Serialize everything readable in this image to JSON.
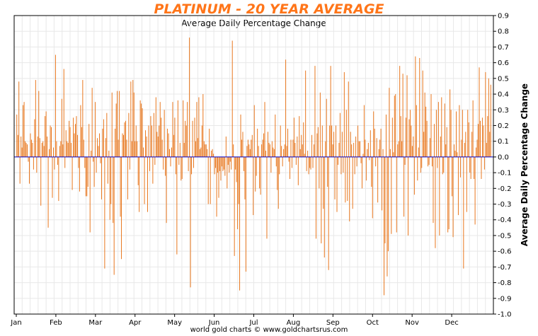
{
  "chart_data": {
    "type": "bar",
    "title": "PLATINUM - 20 YEAR AVERAGE",
    "subtitle": "Average Daily Percentage Change",
    "ylabel": "Average Daily Percentage Change",
    "ylim": [
      -1.0,
      0.9
    ],
    "yticks": [
      "0.9",
      "0.8",
      "0.7",
      "0.6",
      "0.5",
      "0.4",
      "0.3",
      "0.2",
      "0.1",
      "0.0",
      "-0.1",
      "-0.2",
      "-0.3",
      "-0.4",
      "-0.5",
      "-0.6",
      "-0.7",
      "-0.8",
      "-0.9",
      "-1.0"
    ],
    "months": [
      "Jan",
      "Feb",
      "Mar",
      "Apr",
      "May",
      "Jun",
      "Jul",
      "Aug",
      "Sep",
      "Oct",
      "Nov",
      "Dec"
    ],
    "grid": true,
    "bar_color": "#e8771e",
    "zero_line_color": "#0000cc",
    "values": [
      0.27,
      0.14,
      0.48,
      -0.17,
      0.13,
      0.06,
      0.33,
      0.35,
      0.1,
      0.09,
      0.08,
      -0.03,
      -0.17,
      0.15,
      0.11,
      0.09,
      -0.08,
      0.24,
      0.49,
      -0.1,
      0.13,
      0.42,
      0.12,
      -0.31,
      0.09,
      0.1,
      0.07,
      0.26,
      0.29,
      0.13,
      -0.45,
      0.05,
      0.2,
      0.19,
      -0.26,
      0.06,
      -0.08,
      0.65,
      0.1,
      -0.05,
      -0.28,
      0.07,
      0.1,
      0.37,
      0.08,
      0.56,
      -0.07,
      0.17,
      0.1,
      0.09,
      0.23,
      0.19,
      0.09,
      -0.21,
      0.25,
      0.15,
      0.21,
      0.26,
      0.14,
      -0.07,
      -0.22,
      0.33,
      0.19,
      0.49,
      0.11,
      -0.07,
      -0.25,
      -0.25,
      -0.19,
      0.21,
      -0.48,
      0.04,
      0.44,
      -0.03,
      -0.19,
      0.35,
      -0.1,
      0.12,
      0.07,
      0.15,
      -0.04,
      -0.27,
      0.18,
      0.24,
      -0.71,
      0.12,
      0.28,
      -0.17,
      0.04,
      -0.4,
      -0.3,
      0.41,
      -0.42,
      -0.75,
      0.18,
      0.34,
      0.42,
      0.11,
      0.42,
      -0.38,
      -0.65,
      0.15,
      0.14,
      0.22,
      0.23,
      0.11,
      -0.27,
      0.28,
      -0.08,
      0.48,
      0.1,
      0.49,
      0.41,
      0.1,
      0.2,
      0.1,
      -0.18,
      -0.35,
      0.36,
      0.34,
      0.31,
      0.06,
      -0.3,
      0.17,
      0.13,
      -0.35,
      0.2,
      -0.09,
      0.26,
      0.2,
      -0.17,
      0.28,
      -0.05,
      0.38,
      0.16,
      0.13,
      0.2,
      0.35,
      0.25,
      0.11,
      -0.08,
      0.3,
      -0.12,
      -0.42,
      0.18,
      0.15,
      0.05,
      -0.06,
      0.06,
      0.35,
      0.14,
      0.25,
      -0.11,
      -0.62,
      0.36,
      -0.05,
      0.09,
      -0.15,
      -0.14,
      0.36,
      0.09,
      0.23,
      0.2,
      0.35,
      -0.09,
      0.76,
      -0.83,
      -0.11,
      0.23,
      -0.07,
      0.25,
      0.1,
      0.35,
      0.12,
      0.38,
      0.05,
      0.06,
      0.2,
      0.4,
      0.1,
      0.08,
      0.08,
      0.05,
      -0.3,
      0.18,
      -0.3,
      0.04,
      0.05,
      0.02,
      -0.11,
      -0.07,
      -0.38,
      -0.1,
      -0.26,
      -0.09,
      -0.15,
      -0.06,
      -0.09,
      -0.08,
      -0.12,
      0.13,
      -0.2,
      -0.05,
      -0.1,
      -0.03,
      -0.08,
      0.74,
      0.08,
      -0.63,
      -0.08,
      -0.16,
      -0.46,
      -0.3,
      -0.85,
      0.27,
      0.11,
      0.16,
      -0.09,
      -0.27,
      -0.73,
      0.07,
      0.11,
      0.08,
      0.05,
      0.11,
      0.14,
      -0.37,
      0.33,
      -0.22,
      -0.12,
      0.18,
      0.07,
      -0.2,
      -0.24,
      0.08,
      0.11,
      0.15,
      0.35,
      0.04,
      -0.52,
      0.16,
      0.09,
      0.08,
      -0.1,
      0.1,
      0.06,
      0.05,
      0.27,
      -0.06,
      -0.21,
      -0.33,
      -0.11,
      0.2,
      0.07,
      -0.06,
      0.05,
      0.08,
      0.62,
      0.07,
      0.18,
      -0.03,
      -0.14,
      0.11,
      -0.07,
      0.11,
      0.25,
      0.09,
      -0.05,
      0.13,
      -0.18,
      0.26,
      0.05,
      0.14,
      0.08,
      0.22,
      0.02,
      0.55,
      -0.09,
      0.04,
      -0.11,
      -0.07,
      -0.08,
      0.14,
      -0.07,
      0.08,
      0.58,
      -0.52,
      0.15,
      0.19,
      -0.2,
      0.41,
      -0.55,
      0.2,
      -0.33,
      -0.64,
      0.1,
      0.37,
      -0.19,
      -0.72,
      0.2,
      0.58,
      0.2,
      0.08,
      0.16,
      -0.27,
      0.2,
      -0.35,
      -0.05,
      0.09,
      0.28,
      -0.11,
      0.16,
      -0.1,
      0.54,
      -0.29,
      0.3,
      -0.28,
      0.48,
      -0.41,
      0.16,
      0.08,
      -0.33,
      0.09,
      -0.11,
      0.13,
      -0.06,
      0.2,
      0.1,
      0.1,
      -0.04,
      -0.2,
      0.02,
      0.33,
      0.11,
      -0.15,
      0.05,
      0.09,
      -0.02,
      0.17,
      -0.19,
      -0.39,
      0.29,
      0.18,
      -0.06,
      0.12,
      -0.29,
      0.05,
      0.11,
      0.18,
      -0.34,
      0.05,
      -0.88,
      -0.55,
      0.27,
      -0.76,
      -0.6,
      0.44,
      0.05,
      -0.49,
      0.25,
      0.03,
      0.39,
      0.4,
      -0.48,
      0.08,
      0.1,
      0.58,
      0.26,
      0.1,
      0.53,
      -0.38,
      -0.05,
      0.25,
      0.52,
      -0.5,
      0.24,
      0.3,
      0.2,
      0.07,
      0.13,
      -0.24,
      0.64,
      0.33,
      -0.15,
      0.06,
      0.63,
      -0.1,
      -0.07,
      0.55,
      0.16,
      0.41,
      0.32,
      0.23,
      -0.06,
      -0.05,
      0.12,
      0.4,
      -0.06,
      -0.42,
      0.21,
      -0.58,
      0.3,
      -0.07,
      0.35,
      -0.5,
      0.13,
      0.38,
      -0.11,
      -0.1,
      0.34,
      0.08,
      0.19,
      -0.48,
      -0.46,
      0.43,
      0.3,
      -0.25,
      -0.51,
      0.08,
      0.04,
      0.29,
      0.03,
      -0.37,
      0.33,
      -0.13,
      0.11,
      0.3,
      -0.71,
      0.09,
      0.16,
      -0.35,
      0.3,
      0.22,
      -0.1,
      -0.14,
      0.16,
      0.36,
      -0.14,
      -0.43,
      0.06,
      0.11,
      0.21,
      0.57,
      0.23,
      -0.14,
      0.25,
      0.2,
      -0.08,
      0.54,
      0.09,
      0.26,
      0.5,
      0.16,
      0.46
    ]
  },
  "footer": "world gold charts © www.goldchartsrus.com"
}
